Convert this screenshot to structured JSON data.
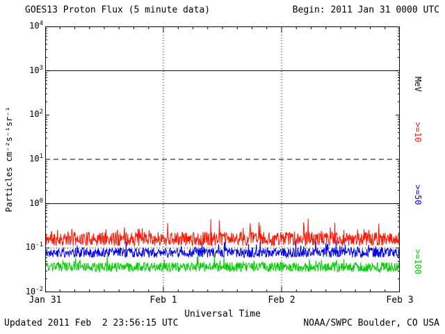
{
  "header": {
    "title": "GOES13 Proton Flux (5 minute data)",
    "begin_label": "Begin: 2011 Jan 31 0000 UTC"
  },
  "footer": {
    "updated": "Updated 2011 Feb  2 23:56:15 UTC",
    "source": "NOAA/SWPC Boulder, CO USA"
  },
  "axes": {
    "ylabel": "Particles cm⁻²s⁻¹sr⁻¹",
    "xlabel": "Universal Time",
    "right_unit_label": "MeV"
  },
  "chart_data": {
    "type": "line",
    "title": "GOES13 Proton Flux (5 minute data)",
    "xlabel": "Universal Time",
    "ylabel": "Particles cm-2 s-1 sr-1",
    "x_range": [
      "2011 Jan 31 0000 UTC",
      "2011 Feb 3 0000 UTC"
    ],
    "x_tick_labels": [
      "Jan 31",
      "Feb 1",
      "Feb 2",
      "Feb 3"
    ],
    "y_scale": "log10",
    "ylim": [
      0.01,
      10000
    ],
    "y_tick_exponents": [
      4,
      3,
      2,
      1,
      0,
      -1,
      -2
    ],
    "grid_vertical_days": [
      1,
      2
    ],
    "reference_lines": [
      {
        "value": 1000,
        "style": "solid"
      },
      {
        "value": 10,
        "style": "dashed"
      },
      {
        "value": 1,
        "style": "solid"
      },
      {
        "value": 0.1,
        "style": "dotted"
      }
    ],
    "series": [
      {
        "name": ">=10 MeV",
        "label": ">=10",
        "color": "#ff1500",
        "baseline": 0.16,
        "approx_range": [
          0.09,
          0.45
        ],
        "log_noise": 0.16,
        "spike_prob": 0.07,
        "spike_amp": 0.34,
        "seed": 11
      },
      {
        "name": ">=50 MeV",
        "label": ">=50",
        "color": "#0000ee",
        "baseline": 0.078,
        "approx_range": [
          0.05,
          0.16
        ],
        "log_noise": 0.11,
        "spike_prob": 0.05,
        "spike_amp": 0.2,
        "seed": 22
      },
      {
        "name": ">=100 MeV",
        "label": ">=100",
        "color": "#00cc00",
        "baseline": 0.037,
        "approx_range": [
          0.024,
          0.07
        ],
        "log_noise": 0.11,
        "spike_prob": 0.05,
        "spike_amp": 0.17,
        "seed": 33
      }
    ],
    "legend_position": "right-rotated",
    "grid": "reference lines at 1e3 solid, 1e1 dashed, 1e0 solid, 1e-1 dotted; vertical dotted at day boundaries"
  }
}
